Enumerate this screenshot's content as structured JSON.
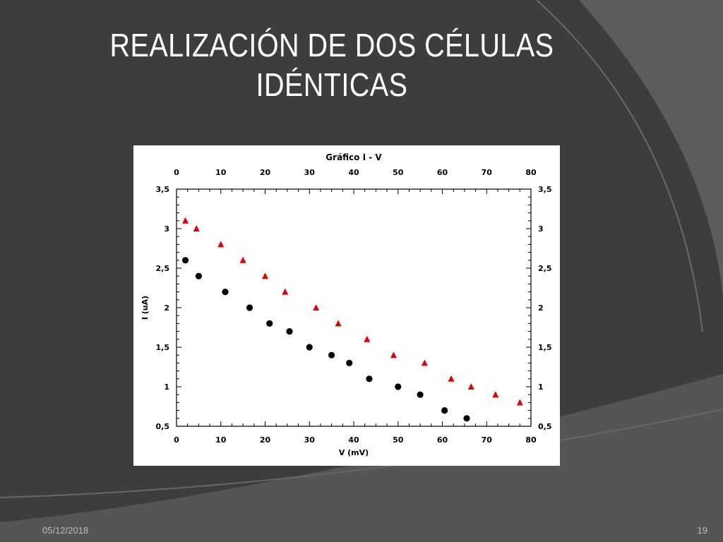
{
  "slide": {
    "title_line1": "REALIZACIÓN DE DOS CÉLULAS",
    "title_line2": "IDÉNTICAS",
    "date": "05/12/2018",
    "page_number": "19"
  },
  "colors": {
    "background": "#3d3d3d",
    "series_black": "#000000",
    "series_red": "#e00000"
  },
  "chart_data": {
    "type": "scatter",
    "title": "Gráfico I - V",
    "xlabel": "V (mV)",
    "ylabel": "I (uA)",
    "xlim": [
      0,
      80
    ],
    "ylim": [
      0.5,
      3.5
    ],
    "x_ticks": [
      "0",
      "10",
      "20",
      "30",
      "40",
      "50",
      "60",
      "70",
      "80"
    ],
    "y_ticks": [
      "0,5",
      "1",
      "1,5",
      "2",
      "2,5",
      "3",
      "3,5"
    ],
    "mirror_axes": true,
    "grid": false,
    "series": [
      {
        "marker": "circle",
        "color": "#000000",
        "x": [
          2,
          5,
          11,
          16.5,
          21,
          25.5,
          30,
          35,
          39,
          43.5,
          50,
          55,
          60.5,
          65.5
        ],
        "y": [
          2.6,
          2.4,
          2.2,
          2.0,
          1.8,
          1.7,
          1.5,
          1.4,
          1.3,
          1.1,
          1.0,
          0.9,
          0.7,
          0.6
        ]
      },
      {
        "marker": "triangle",
        "color": "#e00000",
        "x": [
          2,
          4.5,
          10,
          15,
          20,
          24.5,
          31.5,
          36.5,
          43,
          49,
          56,
          62,
          66.5,
          72,
          77.5
        ],
        "y": [
          3.1,
          3.0,
          2.8,
          2.6,
          2.4,
          2.2,
          2.0,
          1.8,
          1.6,
          1.4,
          1.3,
          1.1,
          1.0,
          0.9,
          0.8
        ]
      }
    ]
  }
}
